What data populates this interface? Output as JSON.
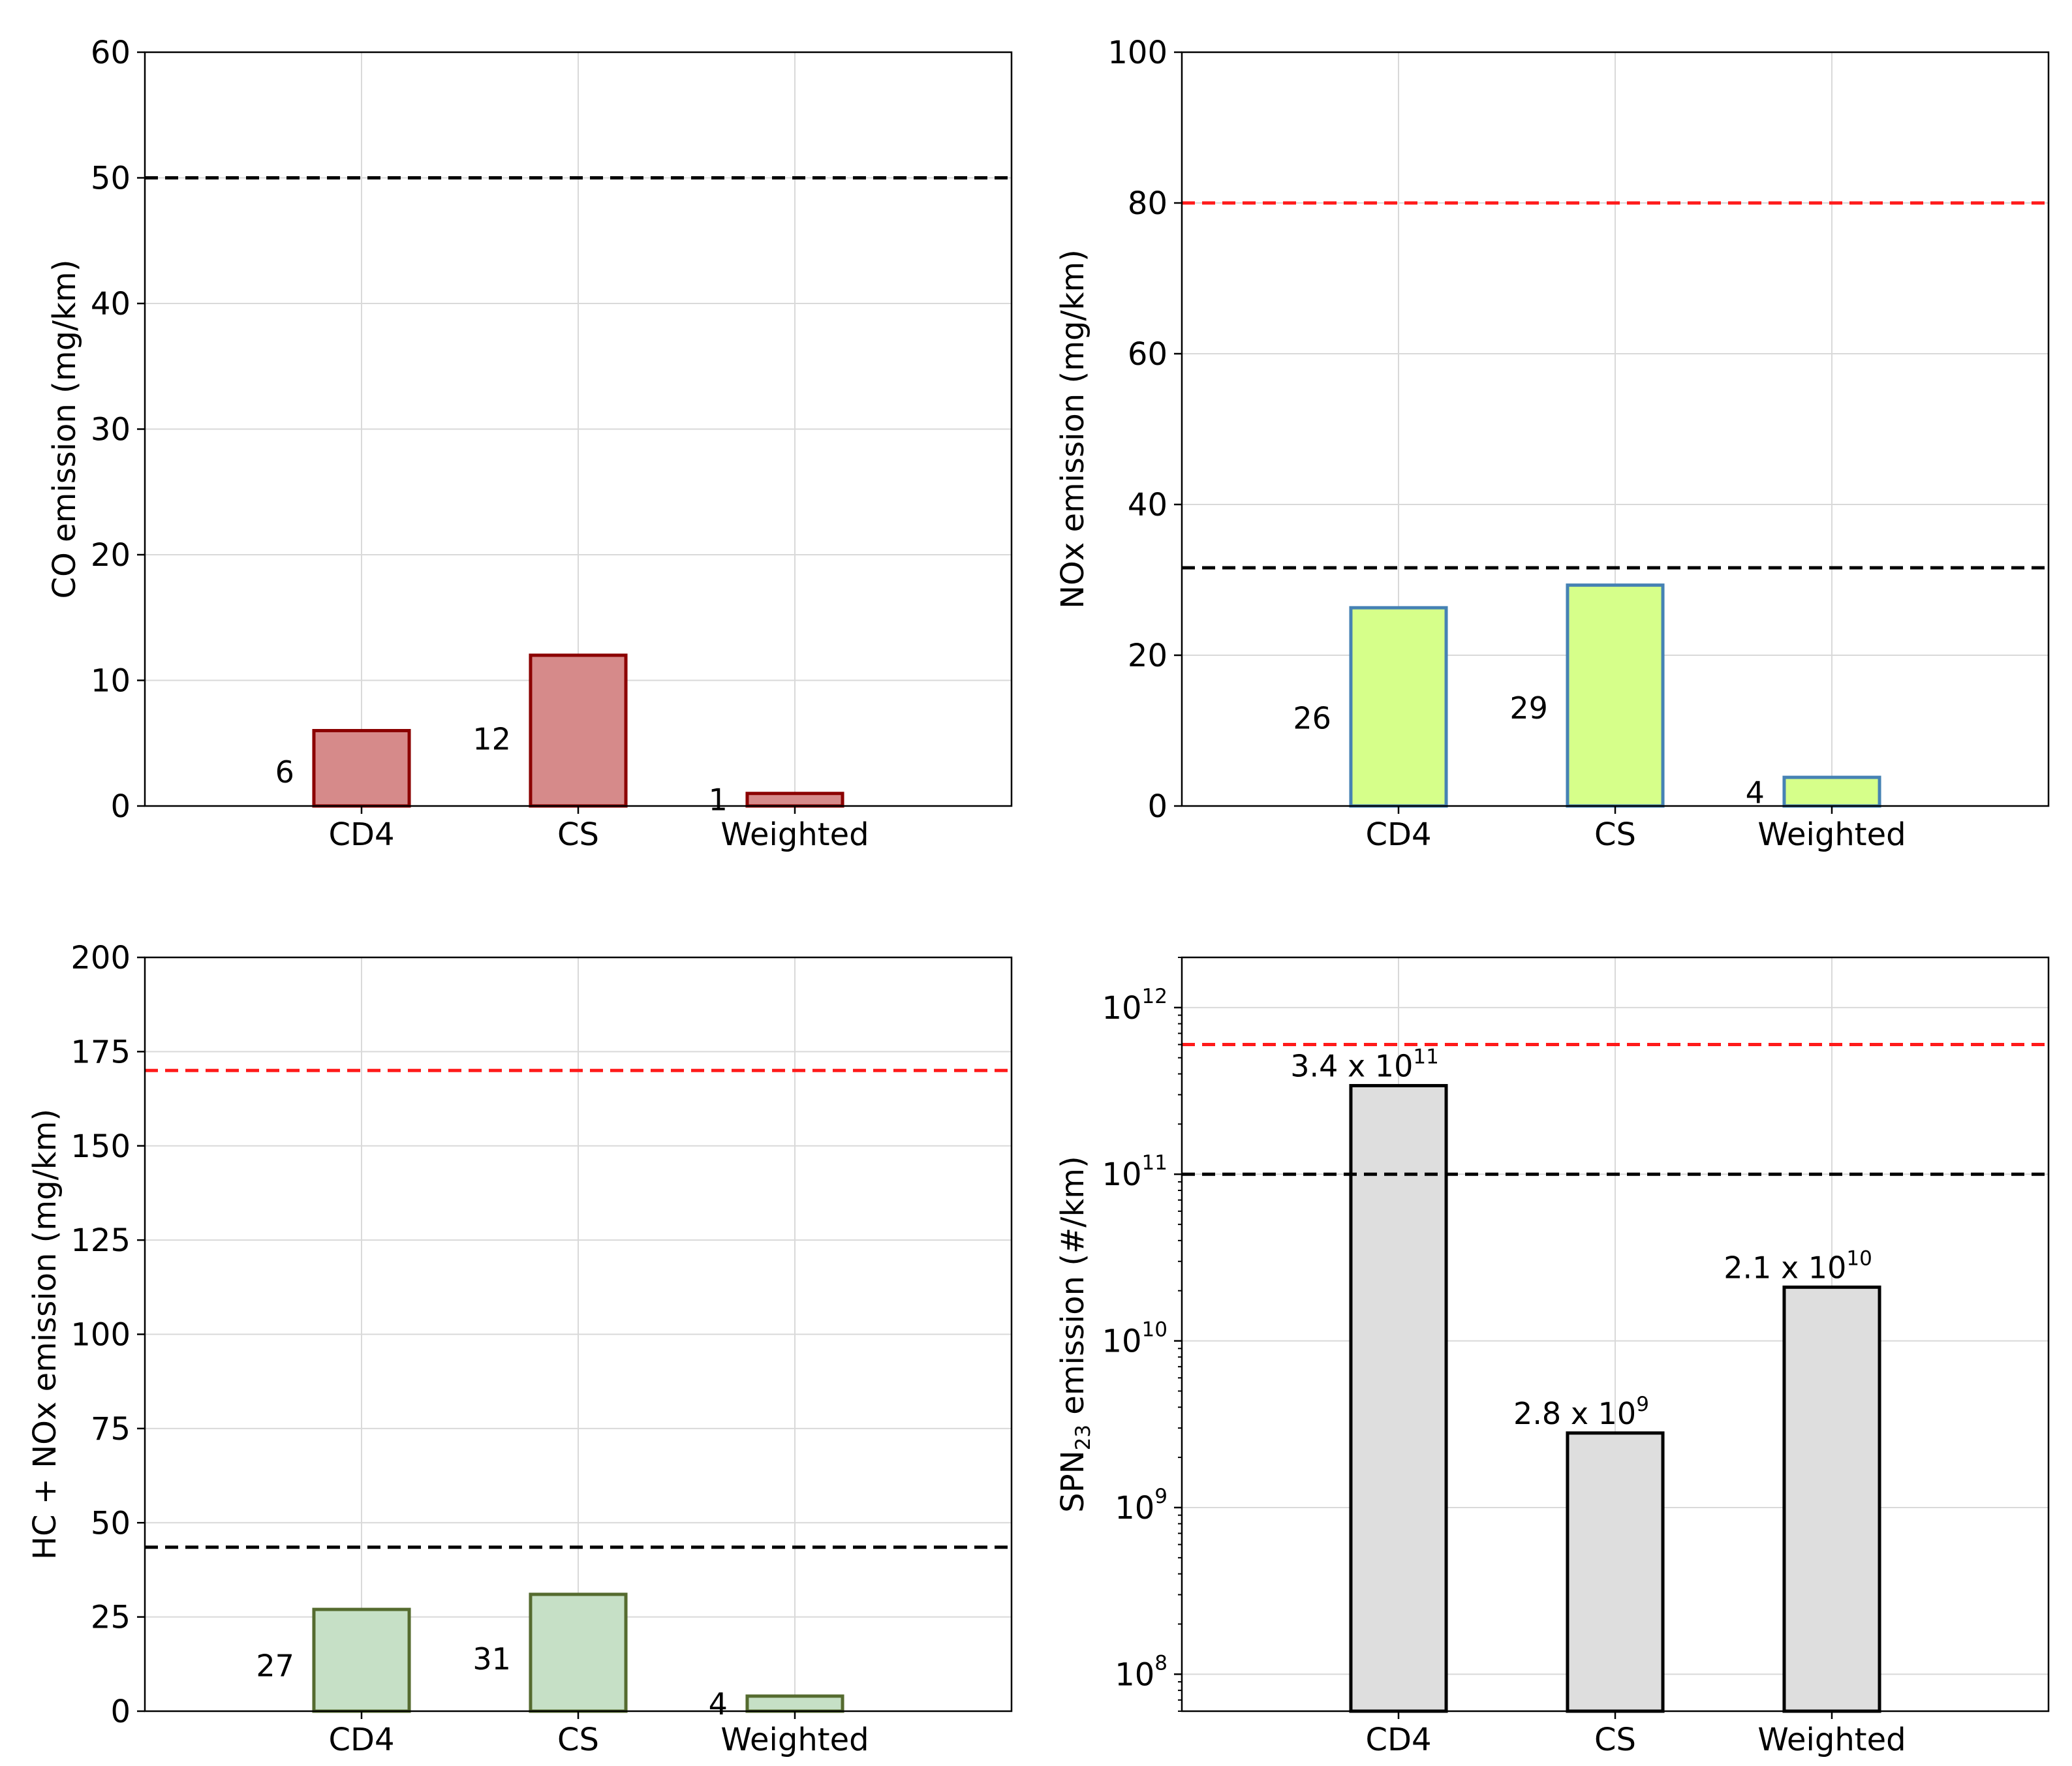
{
  "chart_data": [
    {
      "type": "bar",
      "categories": [
        "CD4",
        "CS",
        "Weighted"
      ],
      "values": [
        6,
        12,
        1
      ],
      "value_labels": [
        "6",
        "12",
        "1"
      ],
      "ylabel": "CO emission (mg/km)",
      "ylim": [
        0,
        60
      ],
      "yticks": [
        0,
        10,
        20,
        30,
        40,
        50,
        60
      ],
      "ytick_labels": [
        "0",
        "10",
        "20",
        "30",
        "40",
        "50",
        "60"
      ],
      "scale": "linear",
      "grid": true,
      "bar_fill": "#d68a8a",
      "bar_edge": "#8b0000",
      "limits": [
        {
          "value": 50,
          "color": "#000000"
        }
      ]
    },
    {
      "type": "bar",
      "categories": [
        "CD4",
        "CS",
        "Weighted"
      ],
      "values": [
        26.3,
        29.3,
        3.8
      ],
      "value_labels": [
        "26",
        "29",
        "4"
      ],
      "ylabel": "NOx emission (mg/km)",
      "ylim": [
        0,
        100
      ],
      "yticks": [
        0,
        20,
        40,
        60,
        80,
        100
      ],
      "ytick_labels": [
        "0",
        "20",
        "40",
        "60",
        "80",
        "100"
      ],
      "scale": "linear",
      "grid": true,
      "bar_fill": "#d6ff8a",
      "bar_edge": "#4682b4",
      "limits": [
        {
          "value": 80,
          "color": "#ff1a1a"
        },
        {
          "value": 31.6,
          "color": "#000000"
        }
      ]
    },
    {
      "type": "bar",
      "categories": [
        "CD4",
        "CS",
        "Weighted"
      ],
      "values": [
        27,
        31,
        4
      ],
      "value_labels": [
        "27",
        "31",
        "4"
      ],
      "ylabel": "HC + NOx emission (mg/km)",
      "ylim": [
        0,
        200
      ],
      "yticks": [
        0,
        25,
        50,
        75,
        100,
        125,
        150,
        175,
        200
      ],
      "ytick_labels": [
        "0",
        "25",
        "50",
        "75",
        "100",
        "125",
        "150",
        "175",
        "200"
      ],
      "scale": "linear",
      "grid": true,
      "bar_fill": "#c6e0c6",
      "bar_edge": "#556b2f",
      "limits": [
        {
          "value": 170,
          "color": "#ff1a1a"
        },
        {
          "value": 43.5,
          "color": "#000000"
        }
      ]
    },
    {
      "type": "bar",
      "categories": [
        "CD4",
        "CS",
        "Weighted"
      ],
      "values": [
        340000000000.0,
        2800000000.0,
        21000000000.0
      ],
      "value_labels": [
        {
          "mantissa": "3.4 x 10",
          "exp": "11"
        },
        {
          "mantissa": "2.8 x 10",
          "exp": "9"
        },
        {
          "mantissa": "2.1 x 10",
          "exp": "10"
        }
      ],
      "ylabel_main": "SPN",
      "ylabel_sub": "23",
      "ylabel_rest": " emission (#/km)",
      "ylim": [
        60000000.0,
        2000000000000.0
      ],
      "yticks": [
        100000000.0,
        1000000000.0,
        10000000000.0,
        100000000000.0,
        1000000000000.0
      ],
      "ytick_labels": [
        {
          "base": "10",
          "exp": "8"
        },
        {
          "base": "10",
          "exp": "9"
        },
        {
          "base": "10",
          "exp": "10"
        },
        {
          "base": "10",
          "exp": "11"
        },
        {
          "base": "10",
          "exp": "12"
        }
      ],
      "scale": "log",
      "grid": true,
      "bar_fill": "#dedede",
      "bar_edge": "#000000",
      "limits": [
        {
          "value": 600000000000.0,
          "color": "#ff1a1a"
        },
        {
          "value": 100000000000.0,
          "color": "#000000"
        }
      ]
    }
  ]
}
